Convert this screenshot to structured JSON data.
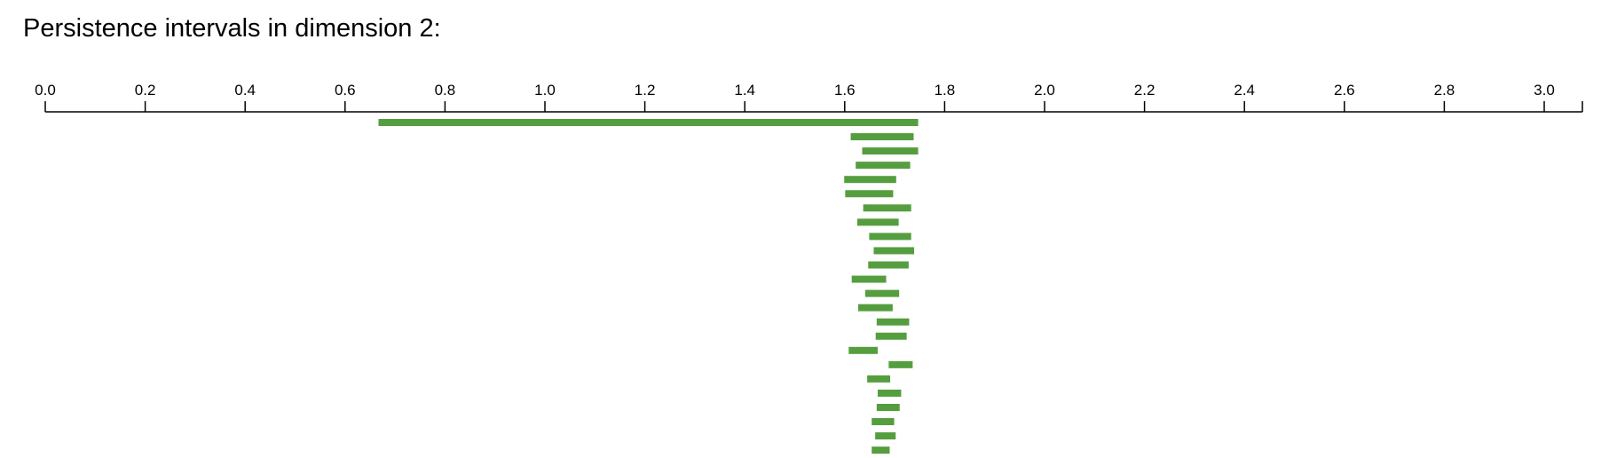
{
  "chart_data": {
    "type": "barcode",
    "title": "Persistence intervals in dimension 2:",
    "xlim": [
      0.0,
      3.08
    ],
    "xticks": [
      "0.0",
      "0.2",
      "0.4",
      "0.6",
      "0.8",
      "1.0",
      "1.2",
      "1.4",
      "1.6",
      "1.8",
      "2.0",
      "2.2",
      "2.4",
      "2.6",
      "2.8",
      "3.0"
    ],
    "grid": false,
    "axis_position": "top",
    "bar_color": "#559e3f",
    "intervals": [
      {
        "birth": 0.667,
        "death": 1.747
      },
      {
        "birth": 1.612,
        "death": 1.738
      },
      {
        "birth": 1.635,
        "death": 1.747
      },
      {
        "birth": 1.622,
        "death": 1.731
      },
      {
        "birth": 1.599,
        "death": 1.703
      },
      {
        "birth": 1.601,
        "death": 1.697
      },
      {
        "birth": 1.637,
        "death": 1.733
      },
      {
        "birth": 1.625,
        "death": 1.708
      },
      {
        "birth": 1.649,
        "death": 1.733
      },
      {
        "birth": 1.658,
        "death": 1.739
      },
      {
        "birth": 1.647,
        "death": 1.728
      },
      {
        "birth": 1.614,
        "death": 1.683
      },
      {
        "birth": 1.641,
        "death": 1.709
      },
      {
        "birth": 1.627,
        "death": 1.696
      },
      {
        "birth": 1.664,
        "death": 1.729
      },
      {
        "birth": 1.662,
        "death": 1.724
      },
      {
        "birth": 1.608,
        "death": 1.666
      },
      {
        "birth": 1.688,
        "death": 1.736
      },
      {
        "birth": 1.645,
        "death": 1.691
      },
      {
        "birth": 1.666,
        "death": 1.713
      },
      {
        "birth": 1.664,
        "death": 1.71
      },
      {
        "birth": 1.654,
        "death": 1.699
      },
      {
        "birth": 1.661,
        "death": 1.702
      },
      {
        "birth": 1.654,
        "death": 1.69
      }
    ]
  }
}
